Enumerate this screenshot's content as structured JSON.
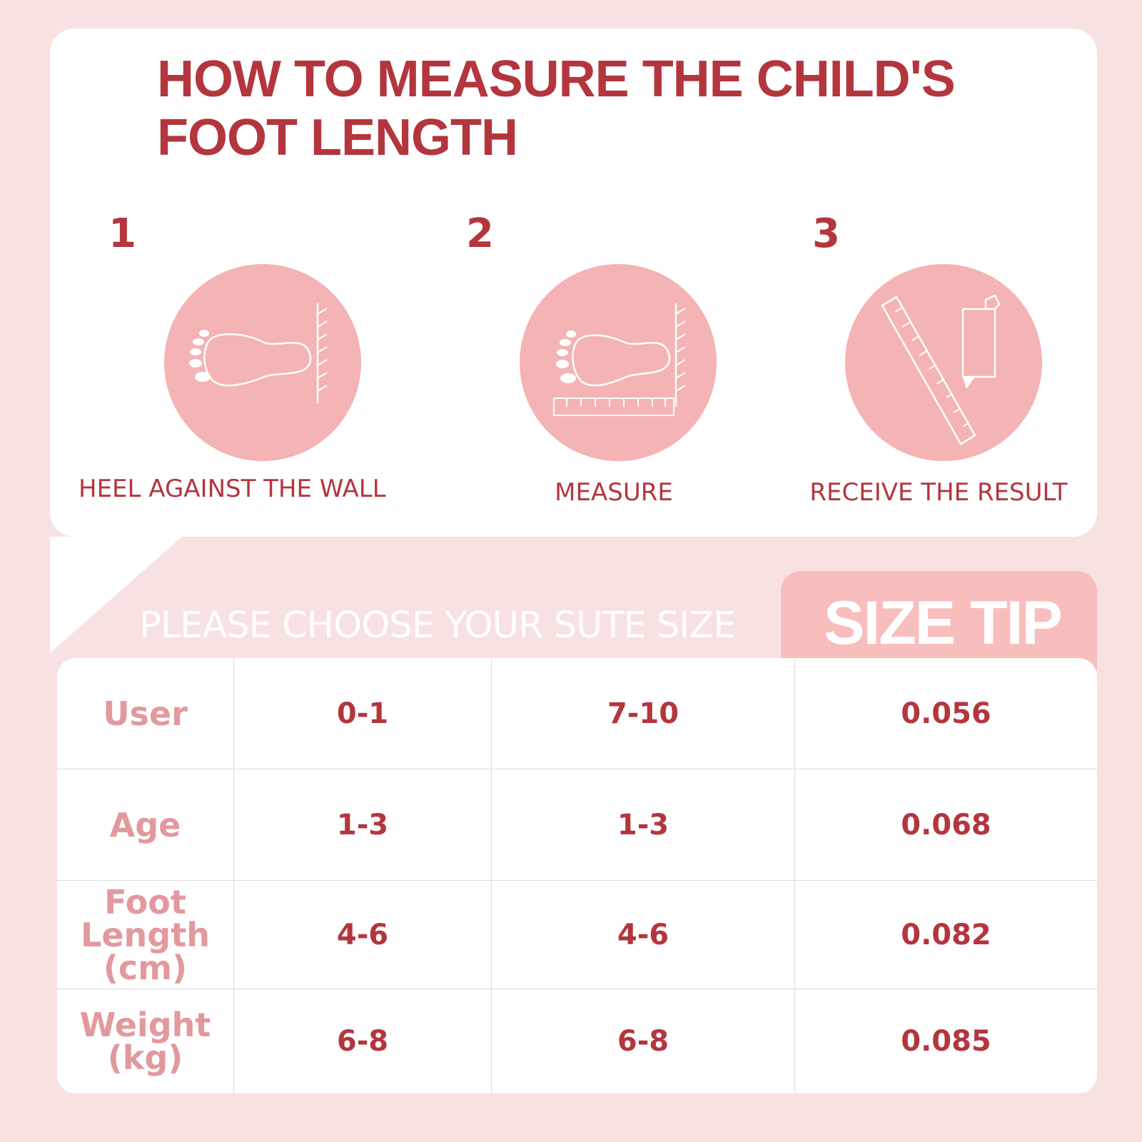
{
  "title": "HOW TO MEASURE THE CHILD'S\nFOOT LENGTH",
  "steps": [
    {
      "number": "1",
      "label": "HEEL AGAINST THE WALL",
      "icon": "foot-against-wall-icon"
    },
    {
      "number": "2",
      "label": "MEASURE",
      "icon": "foot-with-ruler-icon"
    },
    {
      "number": "3",
      "label": "RECEIVE THE RESULT",
      "icon": "ruler-and-pencil-icon"
    }
  ],
  "banner": "PLEASE CHOOSE YOUR SUTE SIZE",
  "size_tip": "SIZE TIP",
  "table": {
    "rows": [
      {
        "header": "User",
        "values": [
          "0-1",
          "7-10",
          "0.056"
        ]
      },
      {
        "header": "Age",
        "values": [
          "1-3",
          "1-3",
          "0.068"
        ]
      },
      {
        "header": "Foot\nLength\n(cm)",
        "values": [
          "4-6",
          "4-6",
          "0.082"
        ]
      },
      {
        "header": "Weight\n(kg)",
        "values": [
          "6-8",
          "6-8",
          "0.085"
        ]
      }
    ]
  },
  "colors": {
    "background": "#f8e1e1",
    "accent_red": "#b3363e",
    "circle_pink": "#f4b3b4",
    "tab_pink": "#f8bebe",
    "header_pink": "#e2999d"
  }
}
